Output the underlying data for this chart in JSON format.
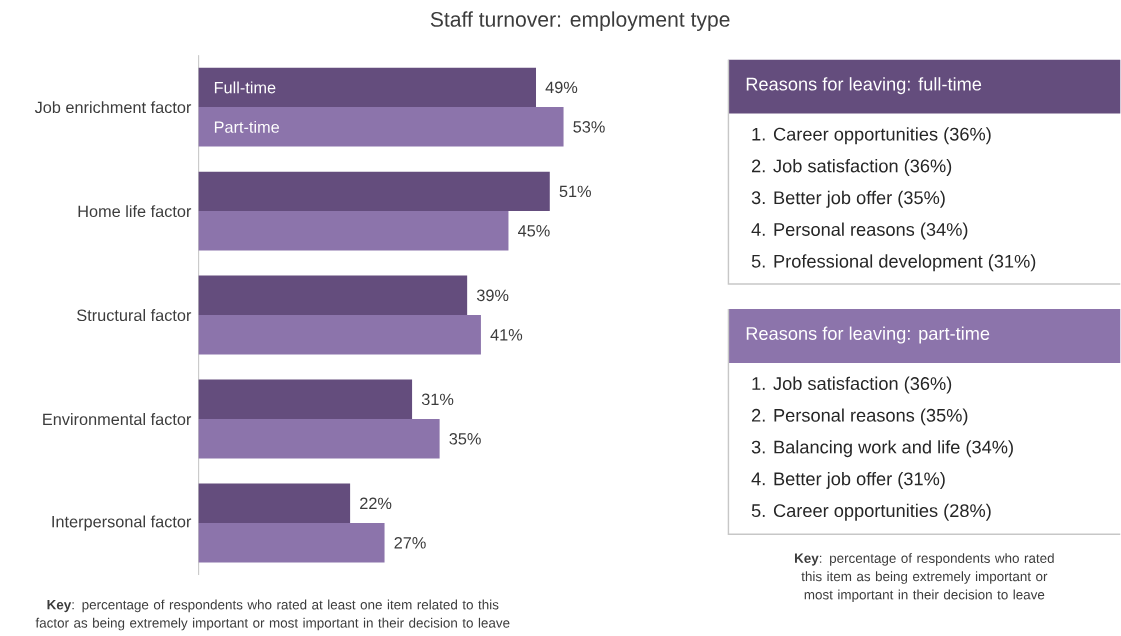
{
  "chart_data": [
    {
      "type": "bar",
      "orientation": "horizontal",
      "title": "Staff turnover: employment type",
      "categories": [
        "Job enrichment factor",
        "Home life factor",
        "Structural factor",
        "Environmental factor",
        "Interpersonal factor"
      ],
      "series": [
        {
          "name": "Full-time",
          "color": "#644d7d",
          "values": [
            49,
            51,
            39,
            31,
            22
          ],
          "value_labels": [
            "49%",
            "51%",
            "39%",
            "31%",
            "22%"
          ]
        },
        {
          "name": "Part-time",
          "color": "#8c74ab",
          "values": [
            53,
            45,
            41,
            35,
            27
          ],
          "value_labels": [
            "53%",
            "45%",
            "41%",
            "35%",
            "27%"
          ]
        }
      ],
      "annotations": [
        "**Key**: percentage of respondents who rated at least one item related to this factor as being extremely important or most important in their decision to leave"
      ]
    },
    {
      "type": "other",
      "title": "Reasons for leaving: full-time",
      "color": "#644d7d",
      "annotations": [
        "1. Career opportunities (36%)",
        "2. Job satisfaction (36%)",
        "3. Better job offer (35%)",
        "4. Personal reasons (34%)",
        "5. Professional development (31%)"
      ]
    },
    {
      "type": "other",
      "title": "Reasons for leaving: part-time",
      "color": "#8c74ab",
      "annotations": [
        "1. Job satisfaction (36%)",
        "2. Personal reasons (35%)",
        "3. Balancing work and life (34%)",
        "4. Better job offer (31%)",
        "5. Career opportunities (28%)",
        "**Key**: percentage of respondents who rated this item as being extremely important or most important in their decision to leave"
      ]
    }
  ]
}
